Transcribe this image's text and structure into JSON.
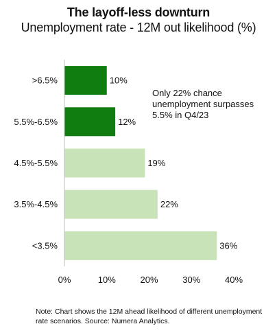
{
  "title": "The layoff-less downturn",
  "subtitle": "Unemployment rate - 12M out likelihood (%)",
  "annotation": "Only 22% chance unemployment surpasses 5.5% in Q4/23",
  "note": "Note: Chart shows the 12M ahead likelihood of different unemployment rate scenarios. Source: Numera Analytics.",
  "colors": {
    "dark_green": "#0f7d0f",
    "light_green": "#c8e3b7"
  },
  "chart_data": {
    "type": "bar",
    "orientation": "horizontal",
    "categories": [
      ">6.5%",
      "5.5%-6.5%",
      "4.5%-5.5%",
      "3.5%-4.5%",
      "<3.5%"
    ],
    "values": [
      10,
      12,
      19,
      22,
      36
    ],
    "value_labels": [
      "10%",
      "12%",
      "19%",
      "22%",
      "36%"
    ],
    "bar_colors": [
      "#0f7d0f",
      "#0f7d0f",
      "#c8e3b7",
      "#c8e3b7",
      "#c8e3b7"
    ],
    "xlim": [
      0,
      40
    ],
    "x_ticks": [
      0,
      10,
      20,
      30,
      40
    ],
    "x_tick_labels": [
      "0%",
      "10%",
      "20%",
      "30%",
      "40%"
    ],
    "grid": false
  }
}
